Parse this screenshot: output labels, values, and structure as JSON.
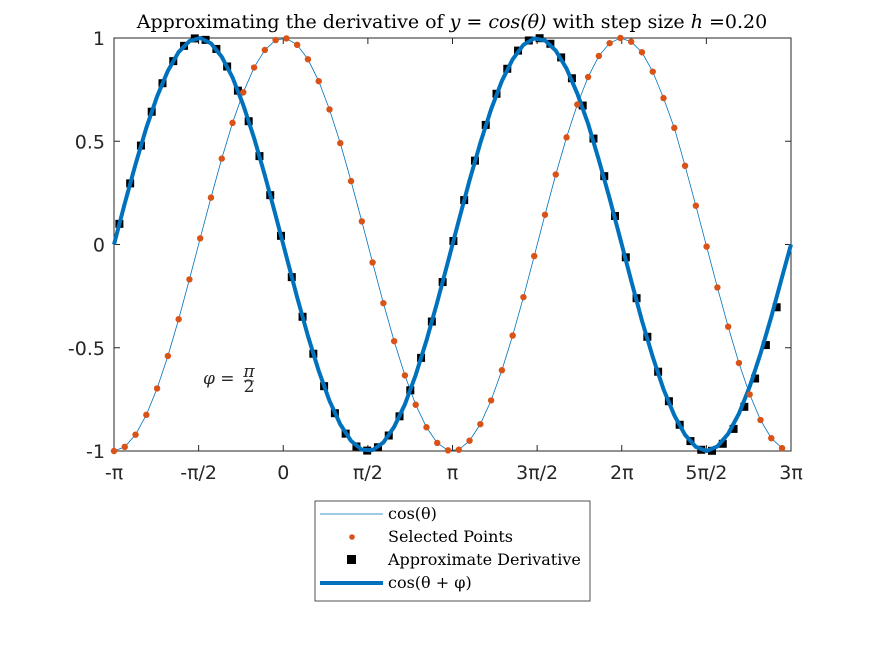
{
  "chart_data": {
    "type": "line",
    "title": "Approximating the derivative of y = cos(θ) with step size h =0.20",
    "title_parts": {
      "prefix": "Approximating the derivative of ",
      "math": "y = cos(θ)",
      "middle": " with step size ",
      "h_symbol": "h",
      "h_value": " =0.20"
    },
    "h": 0.2,
    "phi": 1.5707963,
    "xlim": [
      -3.14159265,
      9.42477796
    ],
    "ylim": [
      -1,
      1
    ],
    "grid": false,
    "legend_placement": "below-outside",
    "xticks": [
      {
        "value": -3.14159265,
        "label": "-π"
      },
      {
        "value": -1.5707963,
        "label": "-π/2"
      },
      {
        "value": 0,
        "label": "0"
      },
      {
        "value": 1.5707963,
        "label": "π/2"
      },
      {
        "value": 3.14159265,
        "label": "π"
      },
      {
        "value": 4.71238898,
        "label": "3π/2"
      },
      {
        "value": 6.28318531,
        "label": "2π"
      },
      {
        "value": 7.85398163,
        "label": "5π/2"
      },
      {
        "value": 9.42477796,
        "label": "3π"
      }
    ],
    "yticks": [
      {
        "value": 1,
        "label": "1"
      },
      {
        "value": 0.5,
        "label": "0.5"
      },
      {
        "value": 0,
        "label": "0"
      },
      {
        "value": -0.5,
        "label": "-0.5"
      },
      {
        "value": -1,
        "label": "-1"
      }
    ],
    "annotation": {
      "text": "φ = π/2",
      "x": -1.75,
      "y": -0.66
    },
    "series": [
      {
        "name": "cos(θ)",
        "kind": "thin-line",
        "color": "#0072BD",
        "x": [
          -3.1416,
          -2.9416,
          -2.7416,
          -2.5416,
          -2.3416,
          -2.1416,
          -1.9416,
          -1.7416,
          -1.5416,
          -1.3416,
          -1.1416,
          -0.9416,
          -0.7416,
          -0.5416,
          -0.3416,
          -0.1416,
          0.0584,
          0.2584,
          0.4584,
          0.6584,
          0.8584,
          1.0584,
          1.2584,
          1.4584,
          1.6584,
          1.8584,
          2.0584,
          2.2584,
          2.4584,
          2.6584,
          2.8584,
          3.0584,
          3.2584,
          3.4584,
          3.6584,
          3.8584,
          4.0584,
          4.2584,
          4.4584,
          4.6584,
          4.8584,
          5.0584,
          5.2584,
          5.4584,
          5.6584,
          5.8584,
          6.0584,
          6.2584,
          6.4584,
          6.6584,
          6.8584,
          7.0584,
          7.2584,
          7.4584,
          7.6584,
          7.8584,
          8.0584,
          8.2584,
          8.4584,
          8.6584,
          8.8584,
          9.0584,
          9.2584
        ],
        "values": [
          -1.0,
          -0.98,
          -0.921,
          -0.825,
          -0.697,
          -0.54,
          -0.362,
          -0.169,
          0.03,
          0.227,
          0.416,
          0.589,
          0.737,
          0.857,
          0.942,
          0.99,
          0.998,
          0.967,
          0.897,
          0.791,
          0.654,
          0.491,
          0.307,
          0.112,
          -0.087,
          -0.284,
          -0.468,
          -0.634,
          -0.776,
          -0.885,
          -0.961,
          -0.997,
          -0.994,
          -0.95,
          -0.87,
          -0.755,
          -0.609,
          -0.441,
          -0.255,
          -0.056,
          0.144,
          0.339,
          0.519,
          0.678,
          0.811,
          0.913,
          0.975,
          1.0,
          0.982,
          0.931,
          0.837,
          0.709,
          0.565,
          0.381,
          0.188,
          -0.01,
          -0.208,
          -0.398,
          -0.574,
          -0.726,
          -0.85,
          -0.938,
          -0.986
        ]
      },
      {
        "name": "Selected Points",
        "kind": "markers",
        "color": "#D95319",
        "same_points_as": "cos(θ)"
      },
      {
        "name": "Approximate Derivative",
        "kind": "squares",
        "color": "#000000",
        "x": [
          -3.0416,
          -2.8416,
          -2.6416,
          -2.4416,
          -2.2416,
          -2.0416,
          -1.8416,
          -1.6416,
          -1.4416,
          -1.2416,
          -1.0416,
          -0.8416,
          -0.6416,
          -0.4416,
          -0.2416,
          -0.0416,
          0.1584,
          0.3584,
          0.5584,
          0.7584,
          0.9584,
          1.1584,
          1.3584,
          1.5584,
          1.7584,
          1.9584,
          2.1584,
          2.3584,
          2.5584,
          2.7584,
          2.9584,
          3.1584,
          3.3584,
          3.5584,
          3.7584,
          3.9584,
          4.1584,
          4.3584,
          4.5584,
          4.7584,
          4.9584,
          5.1584,
          5.3584,
          5.5584,
          5.7584,
          5.9584,
          6.1584,
          6.3584,
          6.5584,
          6.7584,
          6.9584,
          7.1584,
          7.3584,
          7.5584,
          7.7584,
          7.9584,
          8.1584,
          8.3584,
          8.5584,
          8.7584,
          8.9584,
          9.1584
        ],
        "values": [
          0.1,
          0.296,
          0.479,
          0.643,
          0.781,
          0.888,
          0.962,
          0.998,
          0.991,
          0.947,
          0.862,
          0.745,
          0.597,
          0.428,
          0.239,
          0.042,
          -0.158,
          -0.35,
          -0.529,
          -0.686,
          -0.817,
          -0.916,
          -0.978,
          -0.998,
          -0.982,
          -0.925,
          -0.832,
          -0.706,
          -0.549,
          -0.373,
          -0.182,
          0.017,
          0.215,
          0.406,
          0.579,
          0.73,
          0.851,
          0.939,
          0.988,
          0.999,
          0.972,
          0.906,
          0.805,
          0.673,
          0.513,
          0.331,
          0.138,
          -0.062,
          -0.26,
          -0.447,
          -0.616,
          -0.759,
          -0.873,
          -0.952,
          -0.994,
          -0.999,
          -0.965,
          -0.893,
          -0.786,
          -0.649,
          -0.487,
          -0.304
        ]
      },
      {
        "name": "cos(θ + φ)",
        "kind": "thick-line",
        "color": "#0072BD",
        "x": [
          -3.1416,
          -2.9416,
          -2.7416,
          -2.5416,
          -2.3416,
          -2.1416,
          -1.9416,
          -1.7416,
          -1.5416,
          -1.3416,
          -1.1416,
          -0.9416,
          -0.7416,
          -0.5416,
          -0.3416,
          -0.1416,
          0.0584,
          0.2584,
          0.4584,
          0.6584,
          0.8584,
          1.0584,
          1.2584,
          1.4584,
          1.6584,
          1.8584,
          2.0584,
          2.2584,
          2.4584,
          2.6584,
          2.8584,
          3.0584,
          3.2584,
          3.4584,
          3.6584,
          3.8584,
          4.0584,
          4.2584,
          4.4584,
          4.6584,
          4.8584,
          5.0584,
          5.2584,
          5.4584,
          5.6584,
          5.8584,
          6.0584,
          6.2584,
          6.4584,
          6.6584,
          6.8584,
          7.0584,
          7.2584,
          7.4584,
          7.6584,
          7.8584,
          8.0584,
          8.2584,
          8.4584,
          8.6584,
          8.8584,
          9.0584,
          9.2584,
          9.4248
        ],
        "values": [
          0.0,
          0.199,
          0.389,
          0.565,
          0.717,
          0.841,
          0.932,
          0.985,
          1.0,
          0.974,
          0.909,
          0.809,
          0.675,
          0.516,
          0.335,
          0.141,
          -0.058,
          -0.256,
          -0.443,
          -0.612,
          -0.757,
          -0.871,
          -0.951,
          -0.994,
          -0.996,
          -0.959,
          -0.883,
          -0.774,
          -0.632,
          -0.465,
          -0.279,
          -0.083,
          0.116,
          0.311,
          0.492,
          0.655,
          0.792,
          0.897,
          0.967,
          0.998,
          0.988,
          0.939,
          0.852,
          0.731,
          0.585,
          0.409,
          0.223,
          0.025,
          -0.175,
          -0.369,
          -0.544,
          -0.701,
          -0.827,
          -0.922,
          -0.98,
          -1.0,
          -0.978,
          -0.917,
          -0.819,
          -0.688,
          -0.529,
          -0.351,
          -0.158,
          0.0
        ]
      }
    ]
  },
  "legend": {
    "items": [
      {
        "label": "cos(θ)",
        "style": "thin-line",
        "color": "#0072BD"
      },
      {
        "label": "Selected Points",
        "style": "dot",
        "color": "#D95319"
      },
      {
        "label": "Approximate Derivative",
        "style": "square",
        "color": "#000000"
      },
      {
        "label": "cos(θ + φ)",
        "style": "thick-line",
        "color": "#0072BD"
      }
    ]
  }
}
